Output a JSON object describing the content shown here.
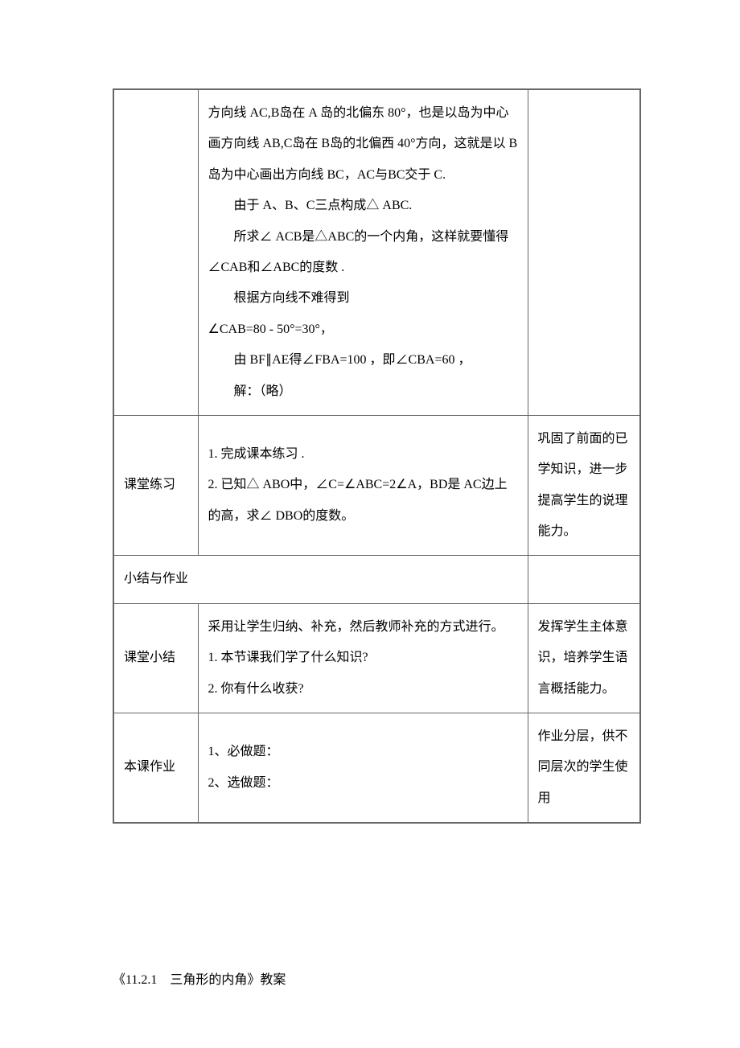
{
  "table": {
    "row1": {
      "col2": {
        "p1": "方向线 AC,B岛在 A 岛的北偏东 80°，也是以岛为中心画方向线 AB,C岛在 B岛的北偏西 40°方向，这就是以 B 岛为中心画出方向线 BC，AC与BC交于 C.",
        "p2": "由于 A、B、C三点构成△ ABC.",
        "p3": "所求∠ ACB是△ABC的一个内角，这样就要懂得∠CAB和∠ABC的度数 .",
        "p4": "根据方向线不难得到",
        "p5": "∠CAB=80 - 50°=30°，",
        "p6": "由 BF∥AE得∠FBA=100 ，即∠CBA=60 ，",
        "p7": "解：（略）"
      }
    },
    "row2": {
      "col1": "课堂练习",
      "col2": {
        "p1": "1. 完成课本练习 .",
        "p2": "2. 已知△ ABO中，∠C=∠ABC=2∠A，BD是 AC边上的高，求∠ DBO的度数。"
      },
      "col3": "巩固了前面的已学知识，进一步提高学生的说理能力。"
    },
    "row3": {
      "header": "小结与作业"
    },
    "row4": {
      "col1": "课堂小结",
      "col2": {
        "p1": "采用让学生归纳、补充，然后教师补充的方式进行。",
        "p2": "1. 本节课我们学了什么知识?",
        "p3": "2. 你有什么收获?"
      },
      "col3": "发挥学生主体意识，培养学生语言概括能力。"
    },
    "row5": {
      "col1": "本课作业",
      "col2": {
        "p1": "1、必做题：",
        "p2": "2、选做题："
      },
      "col3": "作业分层，供不同层次的学生使用"
    }
  },
  "footer": "《11.2.1　三角形的内角》教案"
}
